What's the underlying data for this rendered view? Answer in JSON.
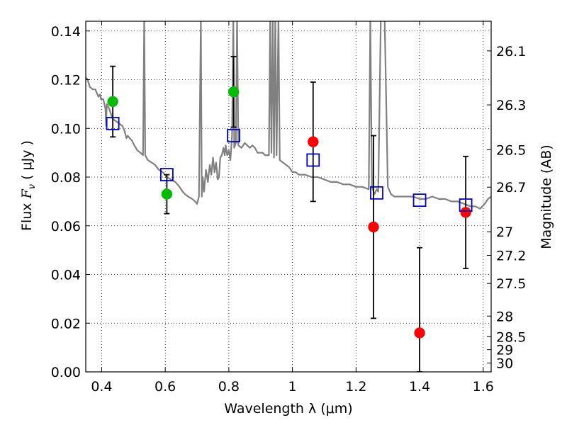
{
  "chart_data": {
    "type": "scatter",
    "xlabel": "Wavelength  λ (μm)",
    "ylabel_prefix": "Flux  ",
    "ylabel_symbol": "F",
    "ylabel_sub": "ν",
    "ylabel_suffix": "  ( μJy )",
    "ylabel_right": "Magnitude (AB)",
    "xlim": [
      0.35,
      1.625
    ],
    "ylim": [
      0.0,
      0.144
    ],
    "grid": true,
    "colors": {
      "model": "#808080",
      "green": "#00bb00",
      "red": "#ff0000",
      "square": "#0000cc",
      "errorbar": "#000000"
    },
    "x_ticks": [
      {
        "v": 0.4,
        "label": "0.4"
      },
      {
        "v": 0.6,
        "label": "0.6"
      },
      {
        "v": 0.8,
        "label": "0.8"
      },
      {
        "v": 1.0,
        "label": "1"
      },
      {
        "v": 1.2,
        "label": "1.2"
      },
      {
        "v": 1.4,
        "label": "1.4"
      },
      {
        "v": 1.6,
        "label": "1.6"
      }
    ],
    "y_ticks": [
      {
        "v": 0.0,
        "label": "0.00"
      },
      {
        "v": 0.02,
        "label": "0.02"
      },
      {
        "v": 0.04,
        "label": "0.04"
      },
      {
        "v": 0.06,
        "label": "0.06"
      },
      {
        "v": 0.08,
        "label": "0.08"
      },
      {
        "v": 0.1,
        "label": "0.10"
      },
      {
        "v": 0.12,
        "label": "0.12"
      },
      {
        "v": 0.14,
        "label": "0.14"
      }
    ],
    "right_ticks": [
      {
        "mag": 26.1,
        "label": "26.1"
      },
      {
        "mag": 26.3,
        "label": "26.3"
      },
      {
        "mag": 26.5,
        "label": "26.5"
      },
      {
        "mag": 26.7,
        "label": "26.7"
      },
      {
        "mag": 27.0,
        "label": "27"
      },
      {
        "mag": 27.2,
        "label": "27.2"
      },
      {
        "mag": 27.5,
        "label": "27.5"
      },
      {
        "mag": 28.0,
        "label": "28"
      },
      {
        "mag": 28.5,
        "label": "28.5"
      },
      {
        "mag": 29.0,
        "label": "29"
      },
      {
        "mag": 30.0,
        "label": "30"
      }
    ],
    "model_spectrum": [
      [
        0.35,
        0.121
      ],
      [
        0.356,
        0.12
      ],
      [
        0.363,
        0.117
      ],
      [
        0.372,
        0.116
      ],
      [
        0.38,
        0.116
      ],
      [
        0.39,
        0.113
      ],
      [
        0.395,
        0.114
      ],
      [
        0.398,
        0.112
      ],
      [
        0.405,
        0.112
      ],
      [
        0.412,
        0.108
      ],
      [
        0.414,
        0.101
      ],
      [
        0.416,
        0.11
      ],
      [
        0.424,
        0.108
      ],
      [
        0.434,
        0.104
      ],
      [
        0.444,
        0.103
      ],
      [
        0.455,
        0.102
      ],
      [
        0.465,
        0.101
      ],
      [
        0.472,
        0.099
      ],
      [
        0.478,
        0.096
      ],
      [
        0.482,
        0.097
      ],
      [
        0.488,
        0.096
      ],
      [
        0.495,
        0.095
      ],
      [
        0.503,
        0.093
      ],
      [
        0.512,
        0.091
      ],
      [
        0.522,
        0.09
      ],
      [
        0.53,
        0.089
      ],
      [
        0.534,
        0.145
      ],
      [
        0.537,
        0.089
      ],
      [
        0.545,
        0.087
      ],
      [
        0.557,
        0.086
      ],
      [
        0.568,
        0.085
      ],
      [
        0.58,
        0.083
      ],
      [
        0.592,
        0.082
      ],
      [
        0.605,
        0.08
      ],
      [
        0.618,
        0.079
      ],
      [
        0.632,
        0.078
      ],
      [
        0.645,
        0.076
      ],
      [
        0.655,
        0.074
      ],
      [
        0.662,
        0.073
      ],
      [
        0.672,
        0.072
      ],
      [
        0.685,
        0.071
      ],
      [
        0.694,
        0.07
      ],
      [
        0.7,
        0.069
      ],
      [
        0.706,
        0.072
      ],
      [
        0.712,
        0.145
      ],
      [
        0.715,
        0.072
      ],
      [
        0.718,
        0.08
      ],
      [
        0.722,
        0.074
      ],
      [
        0.728,
        0.083
      ],
      [
        0.734,
        0.078
      ],
      [
        0.74,
        0.085
      ],
      [
        0.745,
        0.081
      ],
      [
        0.75,
        0.088
      ],
      [
        0.755,
        0.082
      ],
      [
        0.76,
        0.086
      ],
      [
        0.765,
        0.079
      ],
      [
        0.769,
        0.08
      ],
      [
        0.773,
        0.088
      ],
      [
        0.778,
        0.089
      ],
      [
        0.783,
        0.092
      ],
      [
        0.787,
        0.089
      ],
      [
        0.79,
        0.093
      ],
      [
        0.795,
        0.089
      ],
      [
        0.8,
        0.091
      ],
      [
        0.805,
        0.087
      ],
      [
        0.81,
        0.097
      ],
      [
        0.814,
        0.145
      ],
      [
        0.817,
        0.092
      ],
      [
        0.822,
        0.094
      ],
      [
        0.826,
        0.145
      ],
      [
        0.83,
        0.093
      ],
      [
        0.84,
        0.092
      ],
      [
        0.85,
        0.094
      ],
      [
        0.858,
        0.093
      ],
      [
        0.866,
        0.092
      ],
      [
        0.874,
        0.093
      ],
      [
        0.882,
        0.092
      ],
      [
        0.89,
        0.09
      ],
      [
        0.898,
        0.09
      ],
      [
        0.906,
        0.09
      ],
      [
        0.914,
        0.089
      ],
      [
        0.92,
        0.089
      ],
      [
        0.926,
        0.089
      ],
      [
        0.93,
        0.145
      ],
      [
        0.934,
        0.09
      ],
      [
        0.938,
        0.145
      ],
      [
        0.942,
        0.088
      ],
      [
        0.946,
        0.145
      ],
      [
        0.95,
        0.089
      ],
      [
        0.956,
        0.145
      ],
      [
        0.96,
        0.087
      ],
      [
        0.97,
        0.086
      ],
      [
        0.98,
        0.085
      ],
      [
        0.99,
        0.084
      ],
      [
        1.0,
        0.082
      ],
      [
        1.01,
        0.082
      ],
      [
        1.02,
        0.081
      ],
      [
        1.04,
        0.081
      ],
      [
        1.06,
        0.08
      ],
      [
        1.08,
        0.08
      ],
      [
        1.1,
        0.079
      ],
      [
        1.12,
        0.078
      ],
      [
        1.14,
        0.078
      ],
      [
        1.16,
        0.077
      ],
      [
        1.18,
        0.077
      ],
      [
        1.2,
        0.076
      ],
      [
        1.22,
        0.076
      ],
      [
        1.24,
        0.075
      ],
      [
        1.245,
        0.145
      ],
      [
        1.25,
        0.076
      ],
      [
        1.258,
        0.073
      ],
      [
        1.265,
        0.075
      ],
      [
        1.27,
        0.074
      ],
      [
        1.278,
        0.145
      ],
      [
        1.29,
        0.145
      ],
      [
        1.3,
        0.076
      ],
      [
        1.31,
        0.073
      ],
      [
        1.32,
        0.072
      ],
      [
        1.34,
        0.072
      ],
      [
        1.36,
        0.072
      ],
      [
        1.38,
        0.072
      ],
      [
        1.4,
        0.071
      ],
      [
        1.42,
        0.071
      ],
      [
        1.44,
        0.072
      ],
      [
        1.46,
        0.071
      ],
      [
        1.48,
        0.071
      ],
      [
        1.5,
        0.07
      ],
      [
        1.52,
        0.07
      ],
      [
        1.54,
        0.069
      ],
      [
        1.56,
        0.068
      ],
      [
        1.575,
        0.068
      ],
      [
        1.59,
        0.067
      ],
      [
        1.605,
        0.069
      ],
      [
        1.615,
        0.071
      ],
      [
        1.625,
        0.072
      ]
    ],
    "series": [
      {
        "name": "green-points",
        "marker": "circle",
        "color": "green",
        "points": [
          {
            "x": 0.435,
            "y": 0.111,
            "yerr_low": 0.0965,
            "yerr_high": 0.1255
          },
          {
            "x": 0.605,
            "y": 0.073,
            "yerr_low": 0.065,
            "yerr_high": 0.081
          },
          {
            "x": 0.815,
            "y": 0.115,
            "yerr_low": 0.1005,
            "yerr_high": 0.1295
          }
        ]
      },
      {
        "name": "red-points",
        "marker": "circle",
        "color": "red",
        "points": [
          {
            "x": 1.065,
            "y": 0.0945,
            "yerr_low": 0.07,
            "yerr_high": 0.119
          },
          {
            "x": 1.255,
            "y": 0.0595,
            "yerr_low": 0.022,
            "yerr_high": 0.097
          },
          {
            "x": 1.4,
            "y": 0.016,
            "yerr_low": 0.0,
            "yerr_high": 0.051
          },
          {
            "x": 1.545,
            "y": 0.0655,
            "yerr_low": 0.0425,
            "yerr_high": 0.0885
          }
        ]
      },
      {
        "name": "model-photometry",
        "marker": "square",
        "color": "square",
        "points": [
          {
            "x": 0.435,
            "y": 0.102
          },
          {
            "x": 0.605,
            "y": 0.081
          },
          {
            "x": 0.815,
            "y": 0.097
          },
          {
            "x": 1.065,
            "y": 0.087
          },
          {
            "x": 1.265,
            "y": 0.0735
          },
          {
            "x": 1.4,
            "y": 0.0705
          },
          {
            "x": 1.545,
            "y": 0.0685
          }
        ]
      }
    ]
  }
}
